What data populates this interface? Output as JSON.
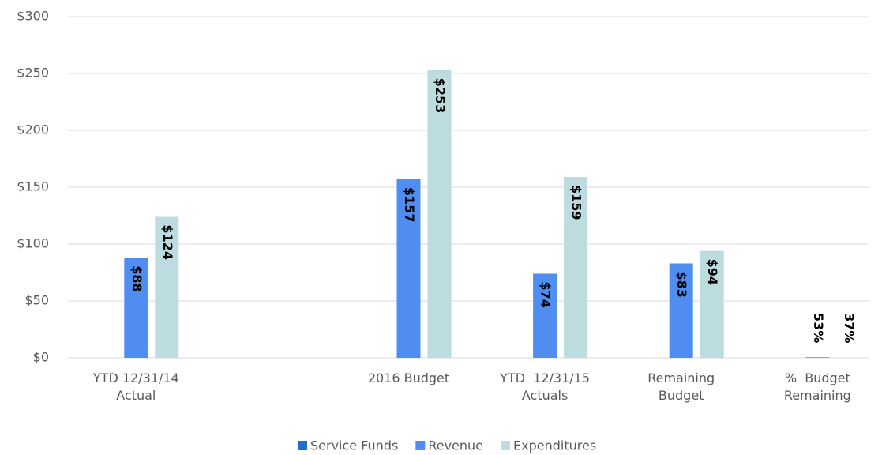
{
  "chart_data": {
    "type": "bar",
    "categories": [
      "YTD 12/31/14 Actual",
      null,
      "2016 Budget",
      "YTD  12/31/15 Actuals",
      "Remaining Budget",
      "%  Budget Remaining"
    ],
    "series": [
      {
        "name": "Service Funds",
        "color": "#1f6fc5",
        "values": [
          null,
          null,
          null,
          null,
          null,
          null
        ]
      },
      {
        "name": "Revenue",
        "color": "#4f8ef0",
        "values": [
          88,
          null,
          157,
          74,
          83,
          0.53
        ],
        "value_labels": [
          "$88",
          null,
          "$157",
          "$74",
          "$83",
          "53%"
        ]
      },
      {
        "name": "Expenditures",
        "color": "#bcdcdf",
        "values": [
          124,
          null,
          253,
          159,
          94,
          0.37
        ],
        "value_labels": [
          "$124",
          null,
          "$253",
          "$159",
          "$94",
          "37%"
        ]
      }
    ],
    "ylim": [
      0,
      300
    ],
    "yticks": [
      {
        "value": 0,
        "label": "$0"
      },
      {
        "value": 50,
        "label": "$50"
      },
      {
        "value": 100,
        "label": "$100"
      },
      {
        "value": 150,
        "label": "$150"
      },
      {
        "value": 200,
        "label": "$200"
      },
      {
        "value": 250,
        "label": "$250"
      },
      {
        "value": 300,
        "label": "$300"
      }
    ],
    "grid": true,
    "legend": "bottom"
  }
}
